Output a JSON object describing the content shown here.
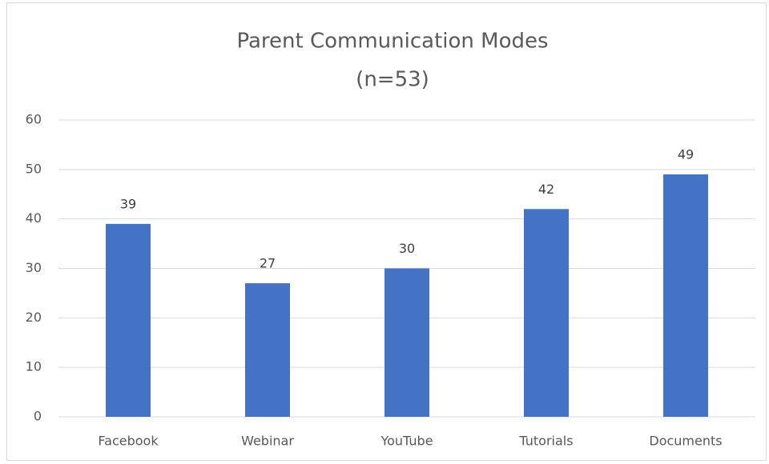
{
  "chart_data": {
    "type": "bar",
    "title": "Parent Communication Modes",
    "subtitle": "(n=53)",
    "categories": [
      "Facebook",
      "Webinar",
      "YouTube",
      "Tutorials",
      "Documents"
    ],
    "values": [
      39,
      27,
      30,
      42,
      49
    ],
    "color": "#4472c4",
    "ylim": [
      0,
      60
    ],
    "yticks": [
      0,
      10,
      20,
      30,
      40,
      50,
      60
    ],
    "grid": true
  }
}
